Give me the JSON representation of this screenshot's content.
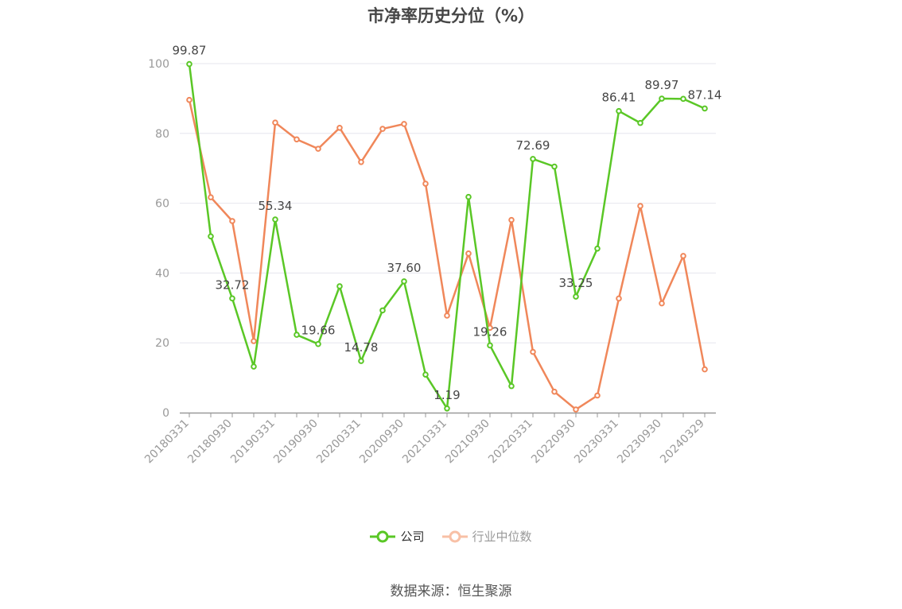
{
  "title": "市净率历史分位（%）",
  "source": "数据来源：恒生聚源",
  "colors": {
    "company": "#5ac726",
    "industry": "#f0875a",
    "axis": "#999999",
    "grid": "#e6e6ee"
  },
  "chart_data": {
    "type": "line",
    "title": "市净率历史分位（%）",
    "ylim": [
      0,
      100
    ],
    "yticks": [
      0,
      20,
      40,
      60,
      80,
      100
    ],
    "grid": true,
    "legend_position": "bottom",
    "x_tick_labels": [
      "20180331",
      "20180930",
      "20190331",
      "20190930",
      "20200331",
      "20200930",
      "20210331",
      "20210930",
      "20220331",
      "20220930",
      "20230331",
      "20230930",
      "20240329"
    ],
    "x": [
      "20180331",
      "20180630",
      "20180930",
      "20181231",
      "20190331",
      "20190630",
      "20190930",
      "20191231",
      "20200331",
      "20200630",
      "20200930",
      "20201231",
      "20210331",
      "20210630",
      "20210930",
      "20211231",
      "20220331",
      "20220630",
      "20220930",
      "20221231",
      "20230331",
      "20230630",
      "20230930",
      "20231231",
      "20240329"
    ],
    "series": [
      {
        "name": "公司",
        "values": [
          99.87,
          50.5,
          32.72,
          13.2,
          55.34,
          22.3,
          19.66,
          36.2,
          14.78,
          29.3,
          37.6,
          10.9,
          1.19,
          61.8,
          19.26,
          7.6,
          72.69,
          70.5,
          33.25,
          47.0,
          86.41,
          83.0,
          89.97,
          89.9,
          87.14
        ],
        "data_labels": [
          {
            "index": 0,
            "text": "99.87"
          },
          {
            "index": 2,
            "text": "32.72"
          },
          {
            "index": 4,
            "text": "55.34"
          },
          {
            "index": 6,
            "text": "19.66"
          },
          {
            "index": 8,
            "text": "14.78"
          },
          {
            "index": 10,
            "text": "37.60"
          },
          {
            "index": 12,
            "text": "1.19"
          },
          {
            "index": 14,
            "text": "19.26"
          },
          {
            "index": 16,
            "text": "72.69"
          },
          {
            "index": 18,
            "text": "33.25"
          },
          {
            "index": 20,
            "text": "86.41"
          },
          {
            "index": 22,
            "text": "89.97"
          },
          {
            "index": 24,
            "text": "87.14"
          }
        ]
      },
      {
        "name": "行业中位数",
        "values": [
          89.6,
          61.7,
          54.9,
          20.5,
          83.1,
          78.3,
          75.6,
          81.6,
          71.8,
          81.3,
          82.7,
          65.6,
          27.8,
          45.6,
          24.3,
          55.2,
          17.4,
          6.0,
          0.9,
          4.9,
          32.7,
          59.2,
          31.3,
          44.9,
          12.4
        ]
      }
    ]
  }
}
